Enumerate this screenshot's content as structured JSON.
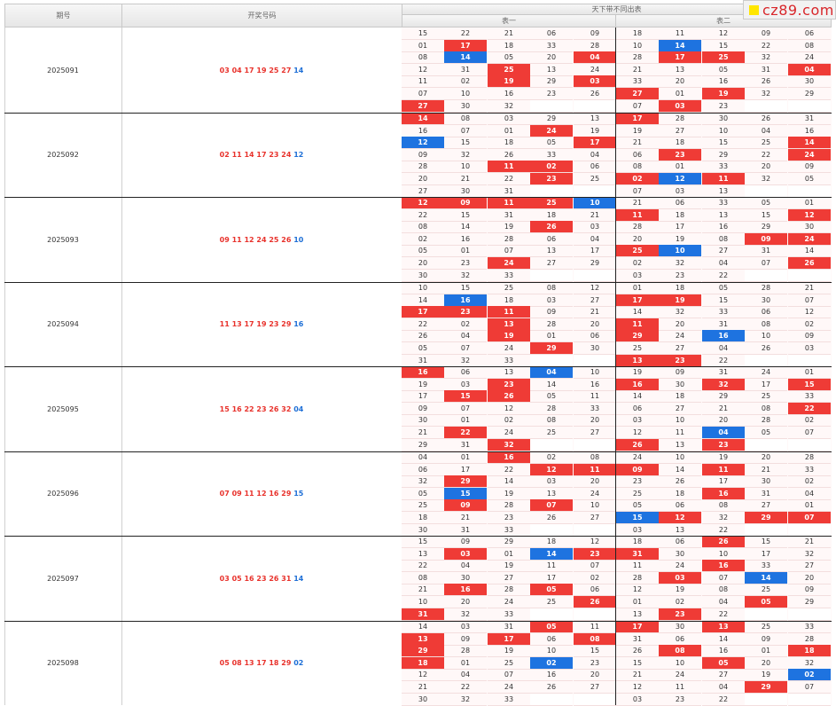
{
  "header": {
    "col_period": "期号",
    "col_draw": "开奖号码",
    "col_group": "天下带不同出表",
    "sub_table1": "表一",
    "sub_table2": "表二"
  },
  "watermark": {
    "text": "cz89.com",
    "accent": "#ffe600",
    "color": "#d8262a"
  },
  "colors": {
    "hit_red": "#ef3b36",
    "hit_blue": "#1e73e0",
    "red_ball": "#e8322c",
    "blue_ball": "#1e6fd6"
  },
  "rows": [
    {
      "period": "2025091",
      "red": "03 04 17 19 25 27",
      "blue": "14",
      "grid": [
        [
          "15",
          "22",
          "21",
          "06",
          "09",
          "18",
          "11",
          "12",
          "09",
          "06"
        ],
        [
          "01",
          "17r",
          "18",
          "33",
          "28",
          "10",
          "14b",
          "15",
          "22",
          "08"
        ],
        [
          "08",
          "14b",
          "05",
          "20",
          "04r",
          "28",
          "17r",
          "25r",
          "32",
          "24"
        ],
        [
          "12",
          "31",
          "25r",
          "13",
          "24",
          "21",
          "13",
          "05",
          "31",
          "04r"
        ],
        [
          "11",
          "02",
          "19r",
          "29",
          "03r",
          "33",
          "20",
          "16",
          "26",
          "30"
        ],
        [
          "07",
          "10",
          "16",
          "23",
          "26",
          "27r",
          "01",
          "19r",
          "32",
          "29"
        ],
        [
          "27r",
          "30",
          "32",
          "",
          "",
          "07",
          "03r",
          "23",
          "",
          ""
        ]
      ]
    },
    {
      "period": "2025092",
      "red": "02 11 14 17 23 24",
      "blue": "12",
      "grid": [
        [
          "14r",
          "08",
          "03",
          "29",
          "13",
          "17r",
          "28",
          "30",
          "26",
          "31"
        ],
        [
          "16",
          "07",
          "01",
          "24r",
          "19",
          "19",
          "27",
          "10",
          "04",
          "16"
        ],
        [
          "12b",
          "15",
          "18",
          "05",
          "17r",
          "21",
          "18",
          "15",
          "25",
          "14r"
        ],
        [
          "09",
          "32",
          "26",
          "33",
          "04",
          "06",
          "23r",
          "29",
          "22",
          "24r"
        ],
        [
          "28",
          "10",
          "11r",
          "02r",
          "06",
          "08",
          "01",
          "33",
          "20",
          "09"
        ],
        [
          "20",
          "21",
          "22",
          "23r",
          "25",
          "02r",
          "12b",
          "11r",
          "32",
          "05"
        ],
        [
          "27",
          "30",
          "31",
          "",
          "",
          "07",
          "03",
          "13",
          "",
          ""
        ]
      ]
    },
    {
      "period": "2025093",
      "red": "09 11 12 24 25 26",
      "blue": "10",
      "grid": [
        [
          "12r",
          "09r",
          "11r",
          "25r",
          "10b",
          "21",
          "06",
          "33",
          "05",
          "01"
        ],
        [
          "22",
          "15",
          "31",
          "18",
          "21",
          "11r",
          "18",
          "13",
          "15",
          "12r"
        ],
        [
          "08",
          "14",
          "19",
          "26r",
          "03",
          "28",
          "17",
          "16",
          "29",
          "30"
        ],
        [
          "02",
          "16",
          "28",
          "06",
          "04",
          "20",
          "19",
          "08",
          "09r",
          "24r"
        ],
        [
          "05",
          "01",
          "07",
          "13",
          "17",
          "25r",
          "10b",
          "27",
          "31",
          "14"
        ],
        [
          "20",
          "23",
          "24r",
          "27",
          "29",
          "02",
          "32",
          "04",
          "07",
          "26r"
        ],
        [
          "30",
          "32",
          "33",
          "",
          "",
          "03",
          "23",
          "22",
          "",
          ""
        ]
      ]
    },
    {
      "period": "2025094",
      "red": "11 13 17 19 23 29",
      "blue": "16",
      "grid": [
        [
          "10",
          "15",
          "25",
          "08",
          "12",
          "01",
          "18",
          "05",
          "28",
          "21"
        ],
        [
          "14",
          "16b",
          "18",
          "03",
          "27",
          "17r",
          "19r",
          "15",
          "30",
          "07"
        ],
        [
          "17r",
          "23r",
          "11r",
          "09",
          "21",
          "14",
          "32",
          "33",
          "06",
          "12"
        ],
        [
          "22",
          "02",
          "13r",
          "28",
          "20",
          "11r",
          "20",
          "31",
          "08",
          "02"
        ],
        [
          "26",
          "04",
          "19r",
          "01",
          "06",
          "29r",
          "24",
          "16b",
          "10",
          "09"
        ],
        [
          "05",
          "07",
          "24",
          "29r",
          "30",
          "25",
          "27",
          "04",
          "26",
          "03"
        ],
        [
          "31",
          "32",
          "33",
          "",
          "",
          "13r",
          "23r",
          "22",
          "",
          ""
        ]
      ]
    },
    {
      "period": "2025095",
      "red": "15 16 22 23 26 32",
      "blue": "04",
      "grid": [
        [
          "16r",
          "06",
          "13",
          "04b",
          "10",
          "19",
          "09",
          "31",
          "24",
          "01"
        ],
        [
          "19",
          "03",
          "23r",
          "14",
          "16",
          "16r",
          "30",
          "32r",
          "17",
          "15r"
        ],
        [
          "17",
          "15r",
          "26r",
          "05",
          "11",
          "14",
          "18",
          "29",
          "25",
          "33"
        ],
        [
          "09",
          "07",
          "12",
          "28",
          "33",
          "06",
          "27",
          "21",
          "08",
          "22r"
        ],
        [
          "30",
          "01",
          "02",
          "08",
          "20",
          "03",
          "10",
          "20",
          "28",
          "02"
        ],
        [
          "21",
          "22r",
          "24",
          "25",
          "27",
          "12",
          "11",
          "04b",
          "05",
          "07"
        ],
        [
          "29",
          "31",
          "32r",
          "",
          "",
          "26r",
          "13",
          "23r",
          "",
          ""
        ]
      ]
    },
    {
      "period": "2025096",
      "red": "07 09 11 12 16 29",
      "blue": "15",
      "grid": [
        [
          "04",
          "01",
          "16r",
          "02",
          "08",
          "24",
          "10",
          "19",
          "20",
          "28"
        ],
        [
          "06",
          "17",
          "22",
          "12r",
          "11r",
          "09r",
          "14",
          "11r",
          "21",
          "33"
        ],
        [
          "32",
          "29r",
          "14",
          "03",
          "20",
          "23",
          "26",
          "17",
          "30",
          "02"
        ],
        [
          "05",
          "15b",
          "19",
          "13",
          "24",
          "25",
          "18",
          "16r",
          "31",
          "04"
        ],
        [
          "25",
          "09r",
          "28",
          "07r",
          "10",
          "05",
          "06",
          "08",
          "27",
          "01"
        ],
        [
          "18",
          "21",
          "23",
          "26",
          "27",
          "15b",
          "12r",
          "32",
          "29r",
          "07r"
        ],
        [
          "30",
          "31",
          "33",
          "",
          "",
          "03",
          "13",
          "22",
          "",
          ""
        ]
      ]
    },
    {
      "period": "2025097",
      "red": "03 05 16 23 26 31",
      "blue": "14",
      "grid": [
        [
          "15",
          "09",
          "29",
          "18",
          "12",
          "18",
          "06",
          "26r",
          "15",
          "21"
        ],
        [
          "13",
          "03r",
          "01",
          "14b",
          "23r",
          "31r",
          "30",
          "10",
          "17",
          "32"
        ],
        [
          "22",
          "04",
          "19",
          "11",
          "07",
          "11",
          "24",
          "16r",
          "33",
          "27"
        ],
        [
          "08",
          "30",
          "27",
          "17",
          "02",
          "28",
          "03r",
          "07",
          "14b",
          "20"
        ],
        [
          "21",
          "16r",
          "28",
          "05r",
          "06",
          "12",
          "19",
          "08",
          "25",
          "09"
        ],
        [
          "10",
          "20",
          "24",
          "25",
          "26r",
          "01",
          "02",
          "04",
          "05r",
          "29"
        ],
        [
          "31r",
          "32",
          "33",
          "",
          "",
          "13",
          "23r",
          "22",
          "",
          ""
        ]
      ]
    },
    {
      "period": "2025098",
      "red": "05 08 13 17 18 29",
      "blue": "02",
      "grid": [
        [
          "14",
          "03",
          "31",
          "05r",
          "11",
          "17r",
          "30",
          "13r",
          "25",
          "33"
        ],
        [
          "13r",
          "09",
          "17r",
          "06",
          "08r",
          "31",
          "06",
          "14",
          "09",
          "28"
        ],
        [
          "29r",
          "28",
          "19",
          "10",
          "15",
          "26",
          "08r",
          "16",
          "01",
          "18r"
        ],
        [
          "18r",
          "01",
          "25",
          "02b",
          "23",
          "15",
          "10",
          "05r",
          "20",
          "32"
        ],
        [
          "12",
          "04",
          "07",
          "16",
          "20",
          "21",
          "24",
          "27",
          "19",
          "02b"
        ],
        [
          "21",
          "22",
          "24",
          "26",
          "27",
          "12",
          "11",
          "04",
          "29r",
          "07"
        ],
        [
          "30",
          "32",
          "33",
          "",
          "",
          "03",
          "23",
          "22",
          "",
          ""
        ]
      ]
    }
  ]
}
